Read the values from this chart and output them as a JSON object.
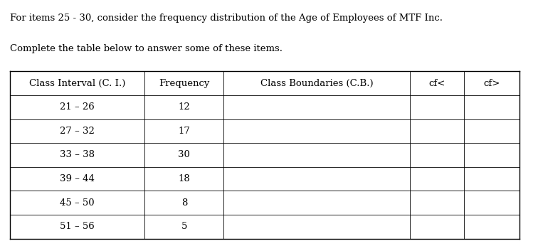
{
  "title_line1": "For items 25 - 30, consider the frequency distribution of the Age of Employees of MTF Inc.",
  "title_line2": "Complete the table below to answer some of these items.",
  "headers": [
    "Class Interval (C. I.)",
    "Frequency",
    "Class Boundaries (C.B.)",
    "cf<",
    "cf>"
  ],
  "rows": [
    [
      "21 – 26",
      "12",
      "",
      "",
      ""
    ],
    [
      "27 – 32",
      "17",
      "",
      "",
      ""
    ],
    [
      "33 – 38",
      "30",
      "",
      "",
      ""
    ],
    [
      "39 – 44",
      "18",
      "",
      "",
      ""
    ],
    [
      "45 – 50",
      "8",
      "",
      "",
      ""
    ],
    [
      "51 – 56",
      "5",
      "",
      "",
      ""
    ]
  ],
  "bg_color": "#ffffff",
  "line_color": "#000000",
  "text_color": "#000000",
  "title_fontsize": 9.5,
  "header_fontsize": 9.5,
  "body_fontsize": 9.5
}
